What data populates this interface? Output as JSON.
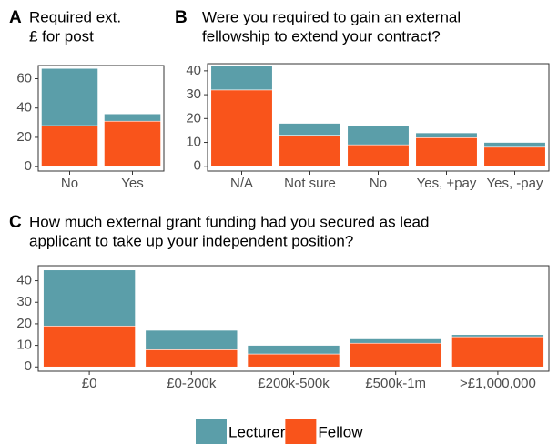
{
  "chart_data": [
    {
      "type": "bar",
      "stacked": true,
      "label": "A",
      "title": [
        "Required ext.",
        "£ for post"
      ],
      "categories": [
        "No",
        "Yes"
      ],
      "series": [
        {
          "name": "Lecturer",
          "color": "#5b9ea9",
          "values": [
            39,
            5
          ]
        },
        {
          "name": "Fellow",
          "color": "#f9541b",
          "values": [
            28,
            31
          ]
        }
      ],
      "ylim": [
        -3,
        69
      ],
      "yticks": [
        0,
        20,
        40,
        60
      ]
    },
    {
      "type": "bar",
      "stacked": true,
      "label": "B",
      "title": [
        "Were you required to gain an external",
        "fellowship to extend your contract?"
      ],
      "categories": [
        "N/A",
        "Not sure",
        "No",
        "Yes, +pay",
        "Yes, -pay"
      ],
      "series": [
        {
          "name": "Lecturer",
          "color": "#5b9ea9",
          "values": [
            10,
            5,
            8,
            2,
            2
          ]
        },
        {
          "name": "Fellow",
          "color": "#f9541b",
          "values": [
            32,
            13,
            9,
            12,
            8
          ]
        }
      ],
      "ylim": [
        -2,
        43
      ],
      "yticks": [
        0,
        10,
        20,
        30,
        40
      ]
    },
    {
      "type": "bar",
      "stacked": true,
      "label": "C",
      "title": [
        "How much external grant funding had you secured as lead",
        "applicant to take up your independent position?"
      ],
      "categories": [
        "£0",
        "£0-200k",
        "£200k-500k",
        "£500k-1m",
        ">£1,000,000"
      ],
      "series": [
        {
          "name": "Lecturer",
          "color": "#5b9ea9",
          "values": [
            26,
            9,
            4,
            2,
            1
          ]
        },
        {
          "name": "Fellow",
          "color": "#f9541b",
          "values": [
            19,
            8,
            6,
            11,
            14
          ]
        }
      ],
      "ylim": [
        -2,
        47
      ],
      "yticks": [
        0,
        10,
        20,
        30,
        40
      ]
    }
  ]
}
